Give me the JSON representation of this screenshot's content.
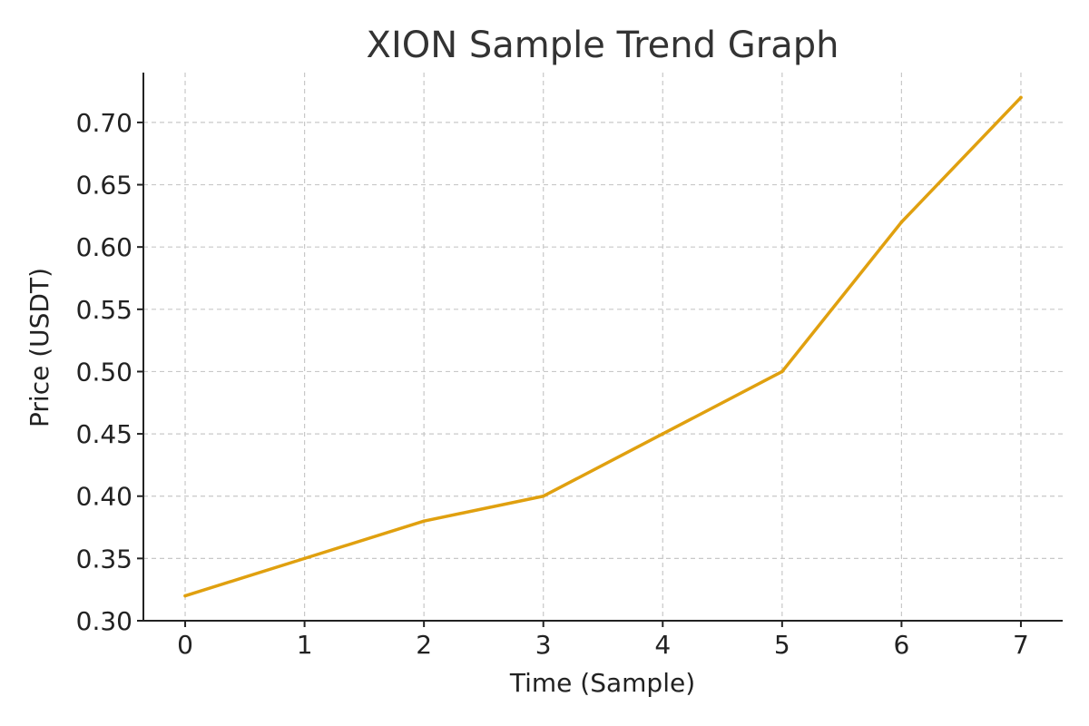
{
  "chart_data": {
    "type": "line",
    "title": "XION Sample Trend Graph",
    "xlabel": "Time (Sample)",
    "ylabel": "Price (USDT)",
    "x": [
      0,
      1,
      2,
      3,
      4,
      5,
      6,
      7
    ],
    "x_ticks": [
      "0",
      "1",
      "2",
      "3",
      "4",
      "5",
      "6",
      "7"
    ],
    "y_ticks": [
      "0.30",
      "0.35",
      "0.40",
      "0.45",
      "0.50",
      "0.55",
      "0.60",
      "0.65",
      "0.70"
    ],
    "xlim": [
      -0.35,
      7.35
    ],
    "ylim": [
      0.3,
      0.74
    ],
    "grid": true,
    "series": [
      {
        "values": [
          0.32,
          0.35,
          0.38,
          0.4,
          0.45,
          0.5,
          0.62,
          0.72
        ],
        "color": "#E0A00F"
      }
    ]
  }
}
